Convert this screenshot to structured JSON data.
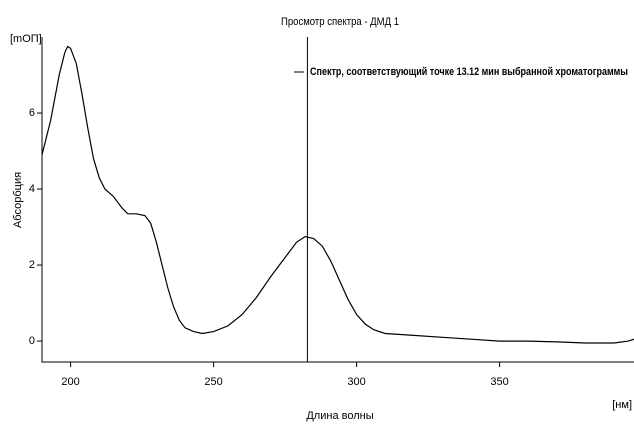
{
  "chart_data": {
    "type": "line",
    "title": "Просмотр спектра  - ДМД 1",
    "y_label": "Абсорбция",
    "y_unit": "[mОП]",
    "x_label": "Длина волны",
    "x_unit": "[нм]",
    "legend_label": "Спектр, соответствующий точке 13.12 мин выбранной хроматограммы",
    "marker_x": 282.8,
    "color": "#000000",
    "x": [
      190,
      193,
      196,
      198,
      199,
      200,
      202,
      204,
      206,
      208,
      210,
      212,
      215,
      218,
      220,
      223,
      226,
      228,
      230,
      232,
      234,
      236,
      238,
      240,
      243,
      246,
      250,
      255,
      260,
      265,
      270,
      275,
      279,
      282,
      285,
      288,
      291,
      294,
      297,
      300,
      303,
      306,
      310,
      320,
      330,
      340,
      350,
      360,
      370,
      380,
      390,
      395,
      397
    ],
    "values": [
      4.9,
      5.8,
      7.0,
      7.6,
      7.75,
      7.7,
      7.3,
      6.5,
      5.6,
      4.8,
      4.3,
      4.0,
      3.8,
      3.5,
      3.35,
      3.35,
      3.3,
      3.1,
      2.6,
      2.0,
      1.4,
      0.9,
      0.55,
      0.35,
      0.25,
      0.2,
      0.25,
      0.4,
      0.7,
      1.15,
      1.7,
      2.2,
      2.6,
      2.75,
      2.7,
      2.5,
      2.1,
      1.6,
      1.1,
      0.7,
      0.45,
      0.3,
      0.2,
      0.15,
      0.1,
      0.05,
      0.0,
      0.0,
      -0.02,
      -0.05,
      -0.05,
      0.0,
      0.05
    ],
    "xlim": [
      190,
      397
    ],
    "ylim": [
      -0.55,
      8
    ],
    "xticks": [
      200,
      250,
      300,
      350
    ],
    "yticks": [
      0,
      2,
      4,
      6
    ]
  }
}
